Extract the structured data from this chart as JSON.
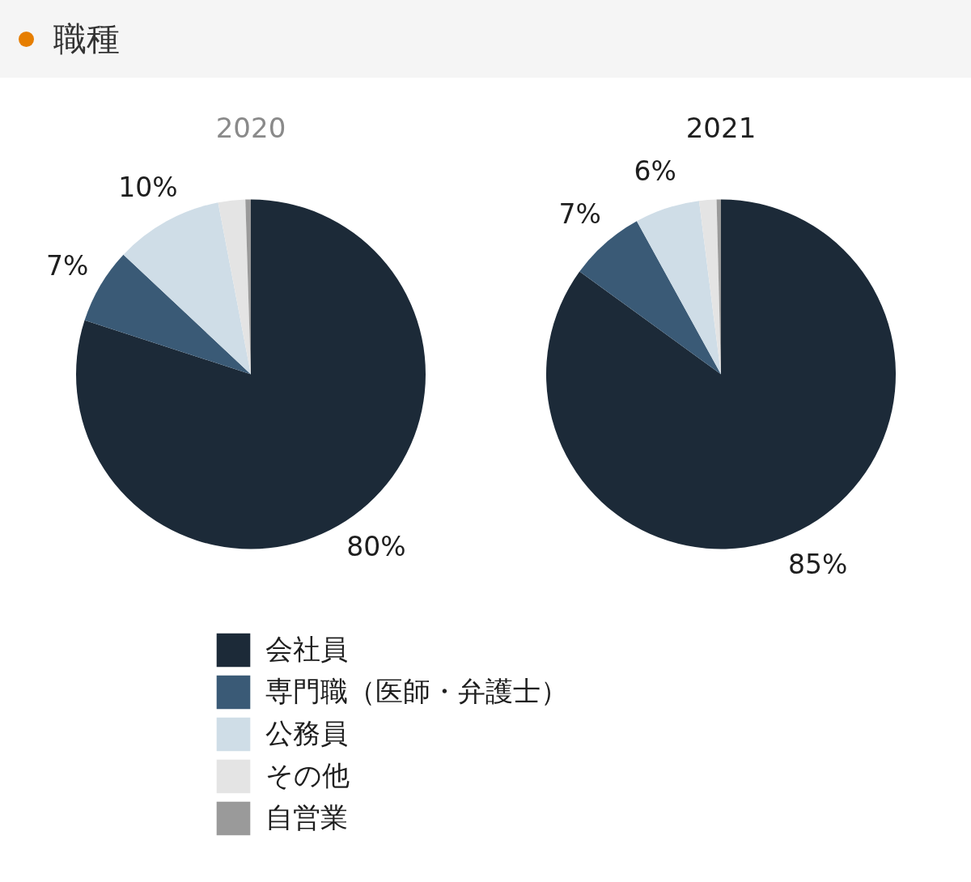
{
  "chart_data": {
    "type": "pie",
    "title": "職種",
    "categories": [
      "会社員",
      "専門職（医師・弁護士）",
      "公務員",
      "その他",
      "自営業"
    ],
    "colors": [
      "#1c2a38",
      "#3a5a76",
      "#cfdde7",
      "#e4e4e4",
      "#9a9a9a"
    ],
    "series": [
      {
        "name": "2020",
        "values": [
          80,
          7,
          10,
          2.5,
          0.5
        ],
        "value_labels": [
          "80%",
          "7%",
          "10%",
          null,
          null
        ]
      },
      {
        "name": "2021",
        "values": [
          85,
          7,
          6,
          1.6,
          0.4
        ],
        "value_labels": [
          "85%",
          "7%",
          "6%",
          null,
          null
        ]
      }
    ],
    "legend": "bottom"
  }
}
